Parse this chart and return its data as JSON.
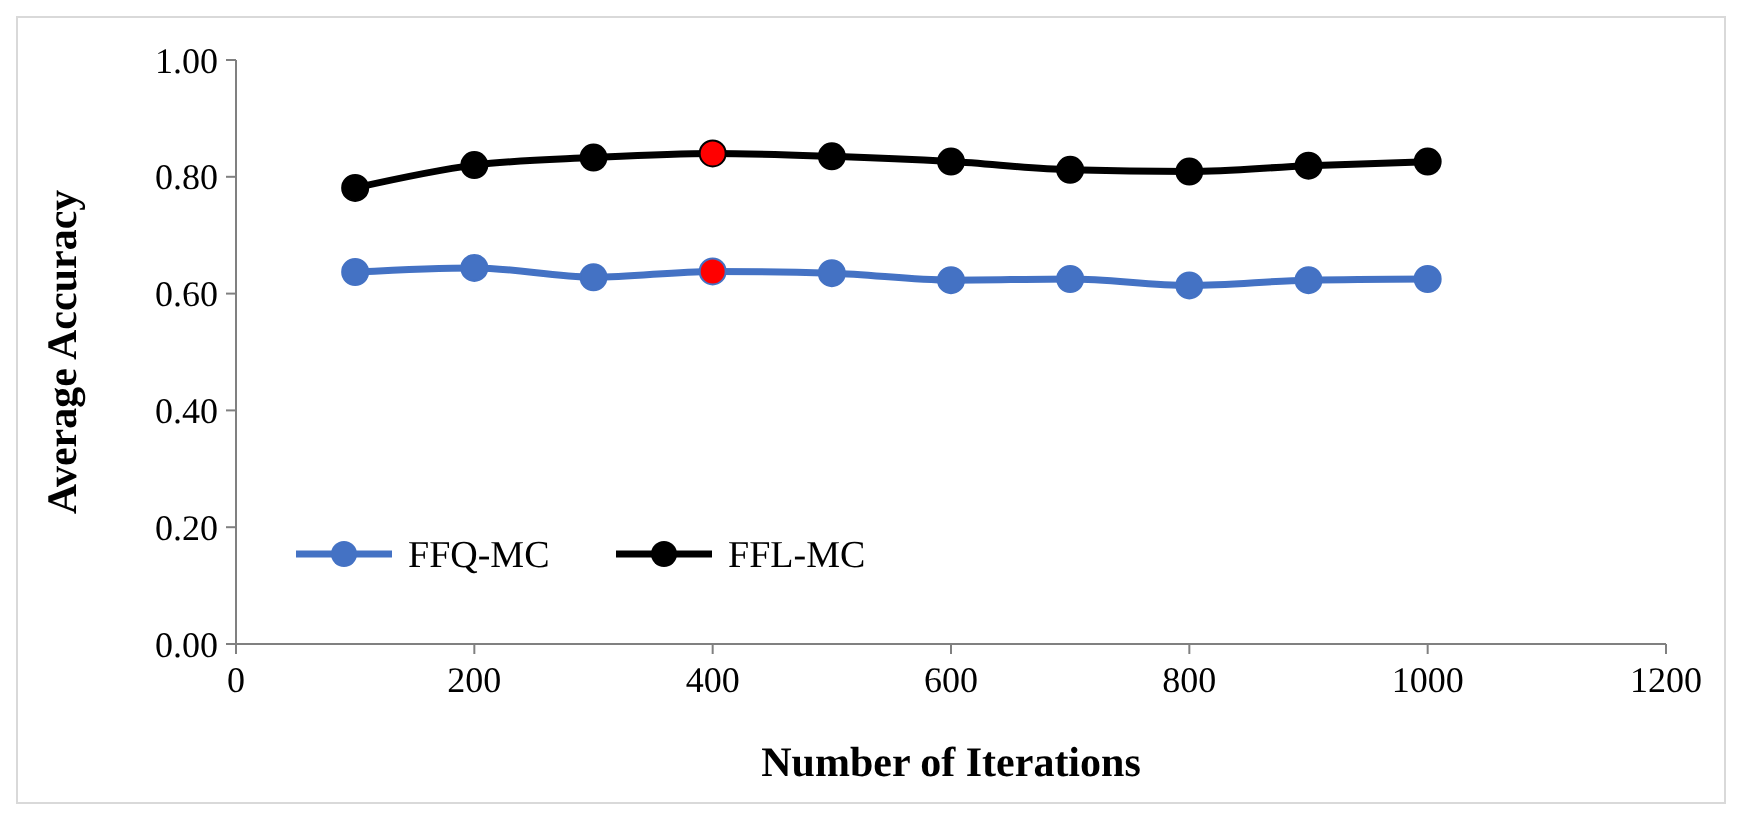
{
  "chart_data": {
    "type": "line",
    "xlabel": "Number of Iterations",
    "ylabel": "Average Accuracy",
    "x": [
      100,
      200,
      300,
      400,
      500,
      600,
      700,
      800,
      900,
      1000
    ],
    "series": [
      {
        "name": "FFQ-MC",
        "color": "#4472c4",
        "colors": [
          "#4472c4",
          "#4472c4",
          "#4472c4",
          "#ff0000",
          "#4472c4",
          "#4472c4",
          "#4472c4",
          "#4472c4",
          "#4472c4",
          "#4472c4"
        ],
        "values": [
          0.637,
          0.644,
          0.628,
          0.638,
          0.635,
          0.623,
          0.625,
          0.614,
          0.623,
          0.625
        ]
      },
      {
        "name": "FFL-MC",
        "color": "#000000",
        "colors": [
          "#000000",
          "#000000",
          "#000000",
          "#ff0000",
          "#000000",
          "#000000",
          "#000000",
          "#000000",
          "#000000",
          "#000000"
        ],
        "values": [
          0.781,
          0.82,
          0.833,
          0.84,
          0.835,
          0.826,
          0.812,
          0.809,
          0.819,
          0.826
        ]
      }
    ],
    "xlim": [
      0,
      1200
    ],
    "xticks": [
      0,
      200,
      400,
      600,
      800,
      1000,
      1200
    ],
    "ylim": [
      0,
      1
    ],
    "yticks": [
      {
        "value": 0,
        "label": "0.00"
      },
      {
        "value": 0.2,
        "label": "0.20"
      },
      {
        "value": 0.4,
        "label": "0.40"
      },
      {
        "value": 0.6,
        "label": "0.60"
      },
      {
        "value": 0.8,
        "label": "0.80"
      },
      {
        "value": 1,
        "label": "1.00"
      }
    ],
    "grid": false,
    "legend": "bottom left",
    "marker": "circle",
    "line_style": "solid"
  }
}
